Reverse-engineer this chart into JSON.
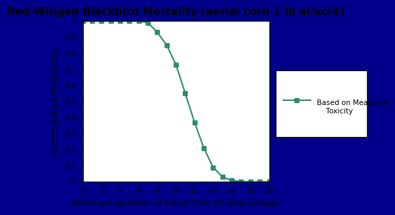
{
  "title": "Red-Winged Blackbird Mortality (aerial corn 1 lb ai/acre)",
  "xlabel": "Minimum Number of Dead from 20-bird Groups",
  "ylabel": "Cummulative Probability",
  "x": [
    0,
    1,
    2,
    3,
    4,
    5,
    6,
    7,
    8,
    9,
    10,
    11,
    12,
    13,
    14,
    15,
    16,
    17,
    18,
    19,
    20
  ],
  "y": [
    1.0,
    1.0,
    1.0,
    1.0,
    1.0,
    1.0,
    1.0,
    0.99,
    0.93,
    0.85,
    0.73,
    0.55,
    0.37,
    0.21,
    0.09,
    0.03,
    0.01,
    0.0,
    0.0,
    0.0,
    0.0
  ],
  "line_color": "#2e8b6e",
  "marker": "s",
  "marker_size": 5,
  "legend_label": "Based on Measured\n    Toxicity",
  "xlim": [
    0,
    20
  ],
  "ylim": [
    0,
    1.0
  ],
  "xticks": [
    0,
    2,
    4,
    6,
    8,
    10,
    12,
    14,
    16,
    18,
    20
  ],
  "yticks": [
    0,
    0.1,
    0.2,
    0.3,
    0.4,
    0.5,
    0.6,
    0.7,
    0.8,
    0.9,
    1
  ],
  "background_color": "#ffffff",
  "outer_background": "#00008b",
  "title_fontsize": 11,
  "axis_label_fontsize": 9,
  "tick_fontsize": 8
}
